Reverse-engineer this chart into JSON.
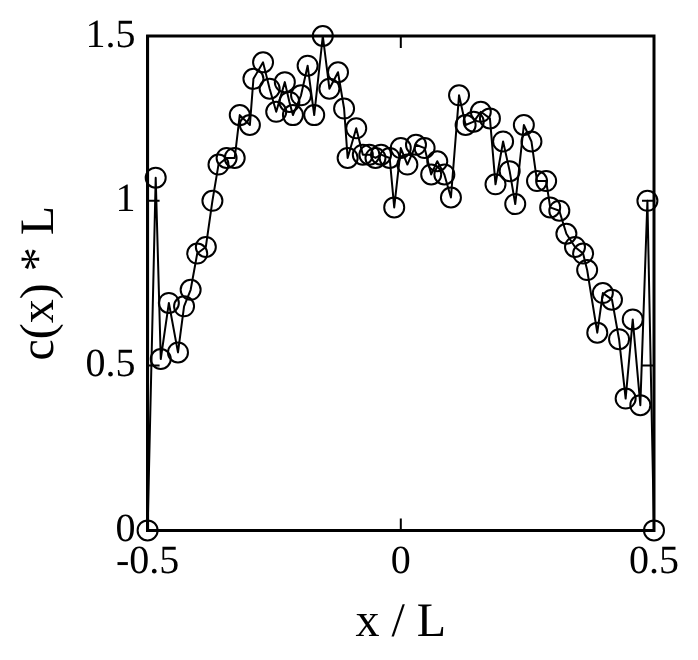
{
  "chart_data": {
    "type": "line",
    "xlabel": "x / L",
    "ylabel": "c(x) * L",
    "xlim": [
      -0.5,
      0.5
    ],
    "xticks": [
      -0.5,
      0,
      0.5
    ],
    "ylim": [
      0,
      1.5
    ],
    "yticks": [
      0,
      0.5,
      1,
      1.5
    ],
    "grid": false,
    "legend": false,
    "marker": "circle",
    "line_style": "solid",
    "series": [
      {
        "color": "#000000",
        "x": [
          -0.5,
          -0.484,
          -0.474,
          -0.458,
          -0.44,
          -0.428,
          -0.415,
          -0.402,
          -0.385,
          -0.372,
          -0.36,
          -0.344,
          -0.328,
          -0.318,
          -0.298,
          -0.291,
          -0.272,
          -0.259,
          -0.246,
          -0.229,
          -0.22,
          -0.213,
          -0.197,
          -0.184,
          -0.171,
          -0.154,
          -0.141,
          -0.124,
          -0.112,
          -0.105,
          -0.088,
          -0.075,
          -0.062,
          -0.05,
          -0.039,
          -0.022,
          -0.013,
          0,
          0.013,
          0.03,
          0.047,
          0.06,
          0.072,
          0.086,
          0.099,
          0.115,
          0.128,
          0.144,
          0.158,
          0.176,
          0.187,
          0.202,
          0.215,
          0.226,
          0.243,
          0.258,
          0.269,
          0.287,
          0.295,
          0.313,
          0.327,
          0.344,
          0.36,
          0.368,
          0.388,
          0.399,
          0.417,
          0.431,
          0.444,
          0.458,
          0.473,
          0.487,
          0.5
        ],
        "values": [
          0,
          1.07,
          0.52,
          0.69,
          0.54,
          0.68,
          0.73,
          0.84,
          0.86,
          1.0,
          1.11,
          1.13,
          1.13,
          1.26,
          1.23,
          1.37,
          1.42,
          1.34,
          1.27,
          1.36,
          1.3,
          1.26,
          1.32,
          1.41,
          1.26,
          1.5,
          1.34,
          1.39,
          1.28,
          1.13,
          1.22,
          1.14,
          1.14,
          1.13,
          1.14,
          1.13,
          0.98,
          1.16,
          1.11,
          1.17,
          1.16,
          1.08,
          1.12,
          1.08,
          1.01,
          1.32,
          1.23,
          1.24,
          1.27,
          1.25,
          1.05,
          1.18,
          1.09,
          0.99,
          1.23,
          1.18,
          1.06,
          1.06,
          0.98,
          0.97,
          0.9,
          0.86,
          0.84,
          0.79,
          0.6,
          0.72,
          0.7,
          0.58,
          0.4,
          0.64,
          0.38,
          1.0,
          0
        ]
      }
    ]
  }
}
